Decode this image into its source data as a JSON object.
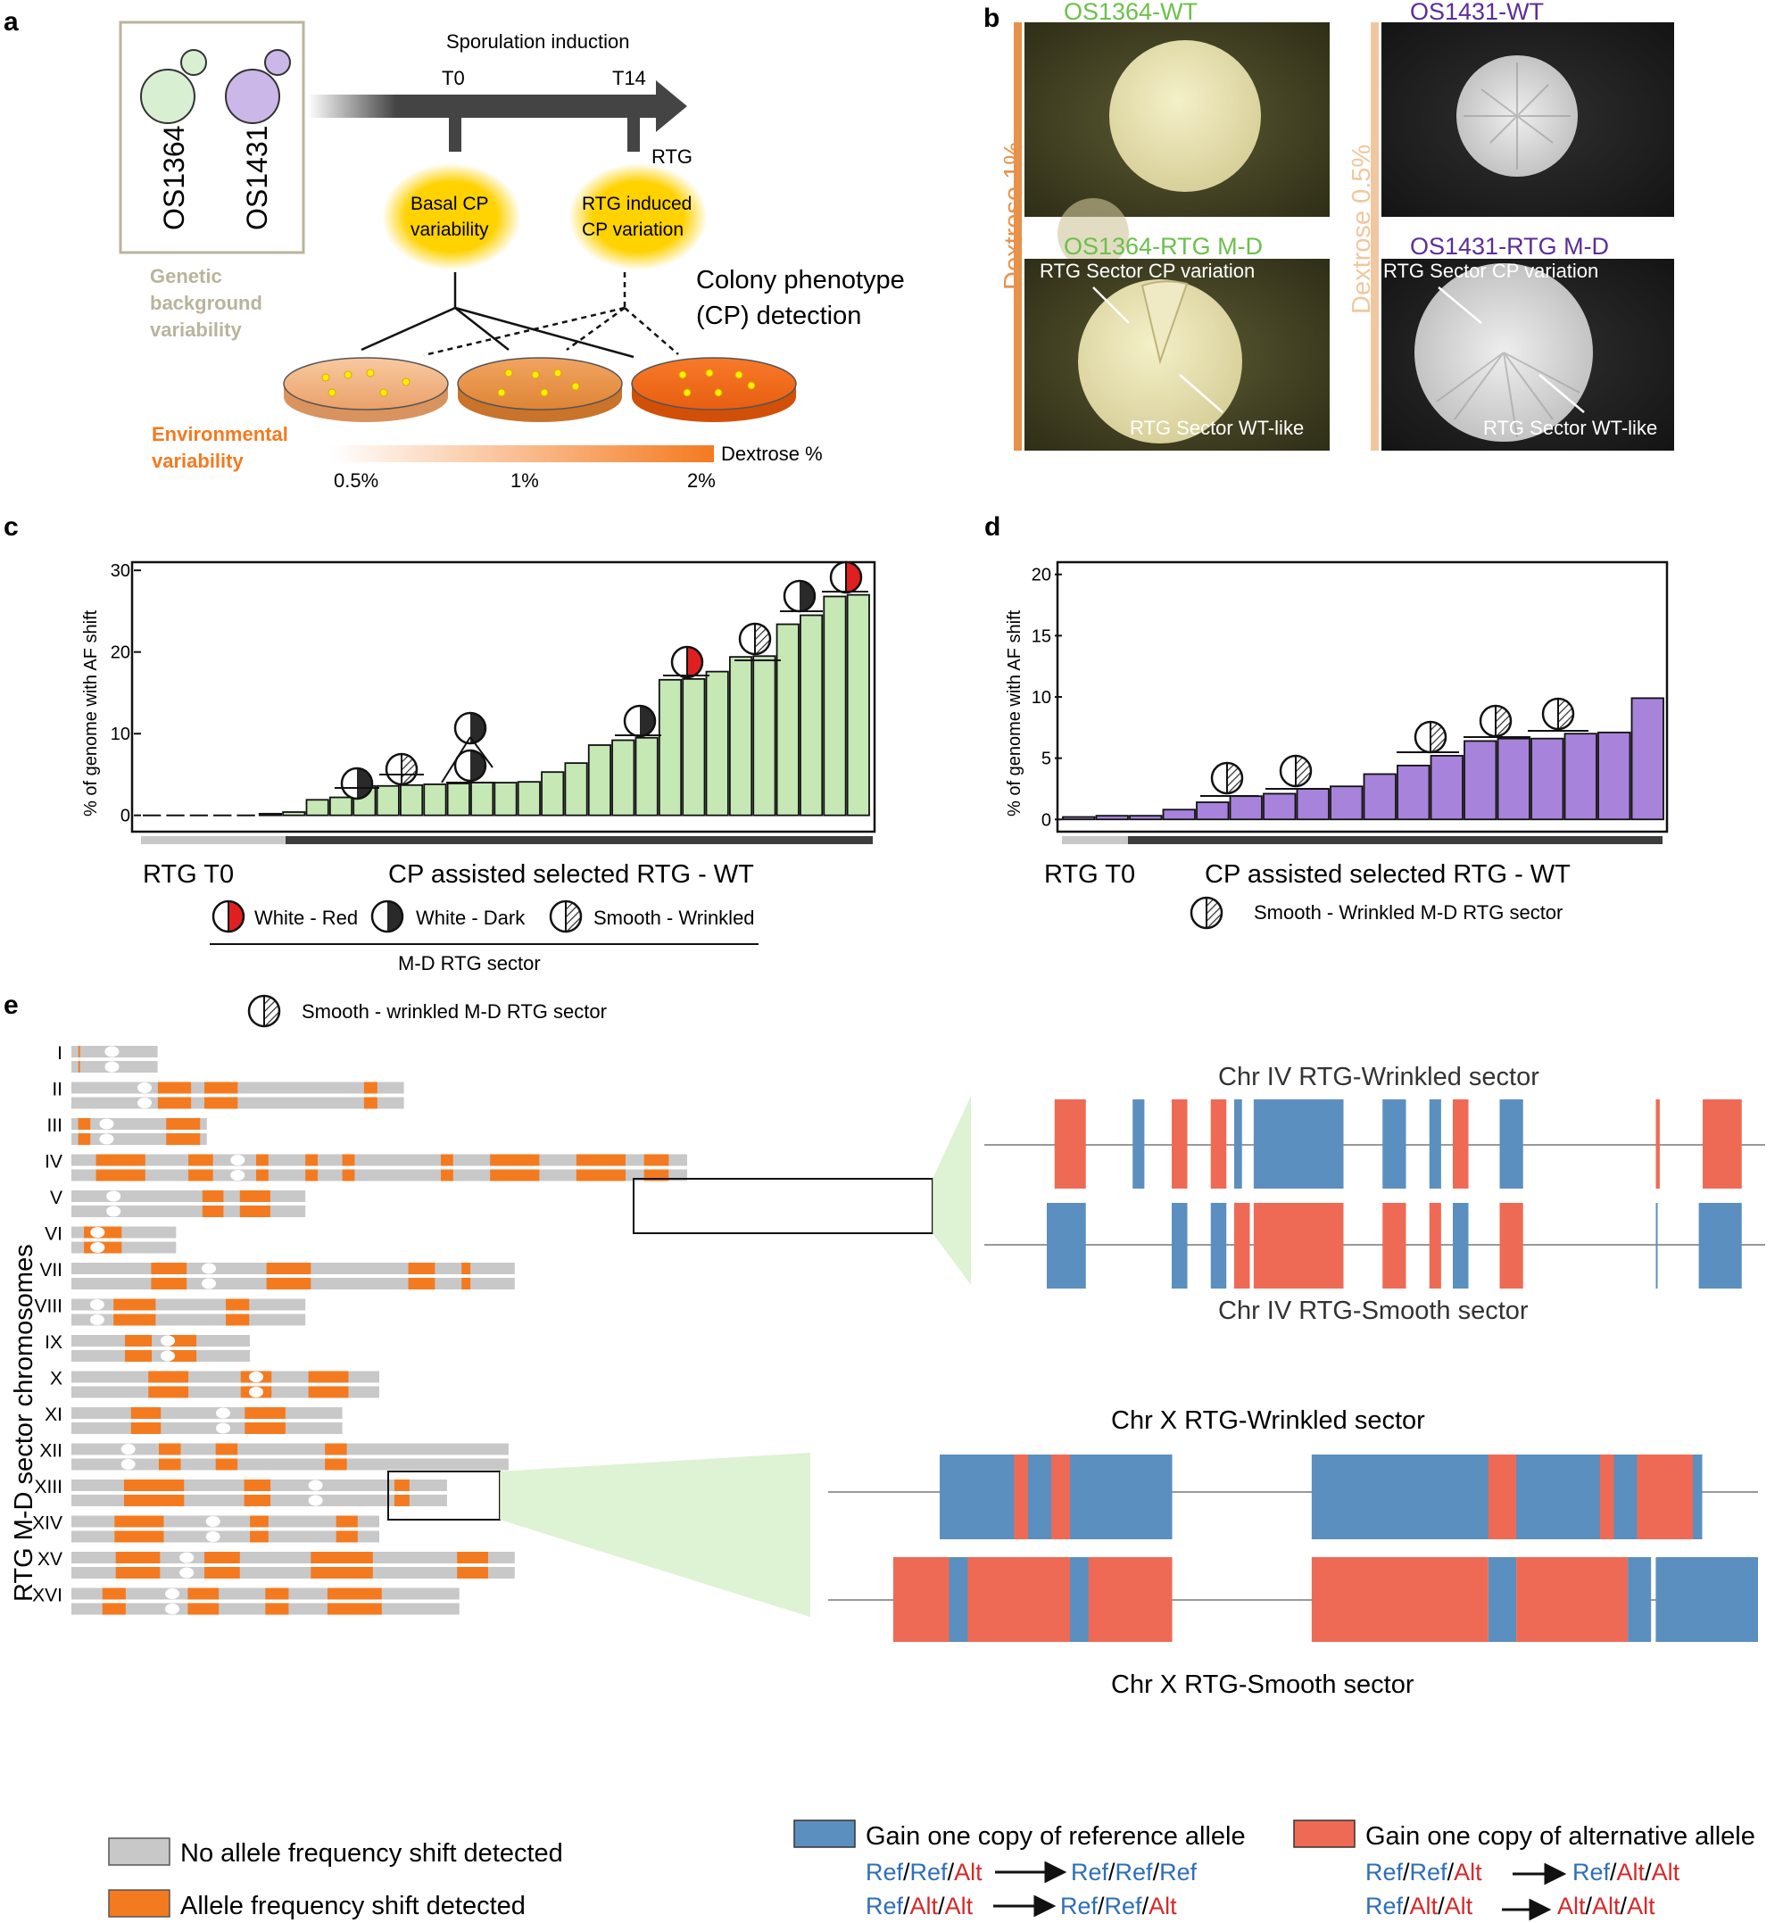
{
  "panel_labels": {
    "a": "a",
    "b": "b",
    "c": "c",
    "d": "d",
    "e": "e"
  },
  "panel_a": {
    "strains": [
      "OS1364",
      "OS1431"
    ],
    "genetic_label": [
      "Genetic",
      "background",
      "variability"
    ],
    "sporulation": "Sporulation induction",
    "t0": "T0",
    "t14": "T14",
    "rtg": "RTG",
    "basal": [
      "Basal CP",
      "variability"
    ],
    "induced": [
      "RTG induced",
      "CP variation"
    ],
    "colony": [
      "Colony phenotype",
      "(CP) detection"
    ],
    "env_label": [
      "Environmental",
      "variability"
    ],
    "dextrose_label": "Dextrose %",
    "ticks": [
      "0.5%",
      "1%",
      "2%"
    ],
    "colors": {
      "os1364": "#d8efd2",
      "os1431": "#cbb7e8",
      "glow": "#ffd400",
      "orange": "#f47a20"
    }
  },
  "panel_b": {
    "os1364_wt": "OS1364-WT",
    "os1431_wt": "OS1431-WT",
    "os1364_md": "OS1364-RTG M-D",
    "os1431_md": "OS1431-RTG M-D",
    "dextrose1": "Dextrose 1%",
    "dextrose05": "Dextrose 0.5%",
    "cp_variation": "RTG Sector CP variation",
    "wt_like": "RTG Sector WT-like",
    "colors": {
      "green": "#6cc04a",
      "purple": "#5b2d9a",
      "bar1": "#e8914a",
      "bar05": "#f0c79e"
    }
  },
  "chart_data": [
    {
      "type": "bar",
      "panel": "c",
      "ylabel": "% of genome with AF shift",
      "yticks": [
        0,
        10,
        20,
        30
      ],
      "ylim": [
        -2,
        31
      ],
      "values": [
        0,
        0,
        0,
        0,
        0,
        0.2,
        0.4,
        1.9,
        2.2,
        3.6,
        3.6,
        3.7,
        3.8,
        3.9,
        4.0,
        4.0,
        4.1,
        5.3,
        6.4,
        8.6,
        9.2,
        9.5,
        16.6,
        16.7,
        17.6,
        19.4,
        19.5,
        23.4,
        24.5,
        26.8,
        27.0
      ],
      "groups": [
        "RTG T0",
        "CP assisted selected RTG - WT"
      ],
      "legend": [
        "White - Red",
        "White - Dark",
        "Smooth - Wrinkled"
      ],
      "legend_title": "M-D RTG sector",
      "color": "#c5e8b4"
    },
    {
      "type": "bar",
      "panel": "d",
      "ylabel": "% of genome with AF shift",
      "yticks": [
        0,
        5,
        10,
        15,
        20
      ],
      "ylim": [
        -1,
        21
      ],
      "values": [
        0.2,
        0.3,
        0.3,
        0.8,
        1.4,
        1.9,
        2.1,
        2.5,
        2.7,
        3.7,
        4.4,
        5.2,
        6.4,
        6.6,
        6.6,
        7.0,
        7.1,
        9.9
      ],
      "groups": [
        "RTG T0",
        "CP assisted selected RTG - WT"
      ],
      "legend": [
        "Smooth - Wrinkled M-D RTG sector"
      ],
      "color": "#a783dc"
    }
  ],
  "panel_e": {
    "legend_top": "Smooth - wrinkled M-D RTG sector",
    "ylabel": "RTG M-D sector chromosomes",
    "chromosomes": [
      "I",
      "II",
      "III",
      "IV",
      "V",
      "VI",
      "VII",
      "VIII",
      "IX",
      "X",
      "XI",
      "XII",
      "XIII",
      "XIV",
      "XV",
      "XVI"
    ],
    "chr4_top": "Chr IV RTG-Wrinkled sector",
    "chr4_bottom": "Chr IV RTG-Smooth sector",
    "chrx_top": "Chr X RTG-Wrinkled sector",
    "chrx_bottom": "Chr X RTG-Smooth sector",
    "legend_no_shift": "No allele frequency shift detected",
    "legend_shift": "Allele frequency shift detected",
    "legend_ref": "Gain one copy of reference allele",
    "legend_alt": "Gain one copy of alternative allele",
    "colors": {
      "grey": "#c8c8c8",
      "orange": "#f47a20",
      "blue": "#5b8fbf",
      "red": "#ef6a55",
      "ref_text": "#2f6fb6",
      "alt_text": "#d42a2a"
    }
  }
}
